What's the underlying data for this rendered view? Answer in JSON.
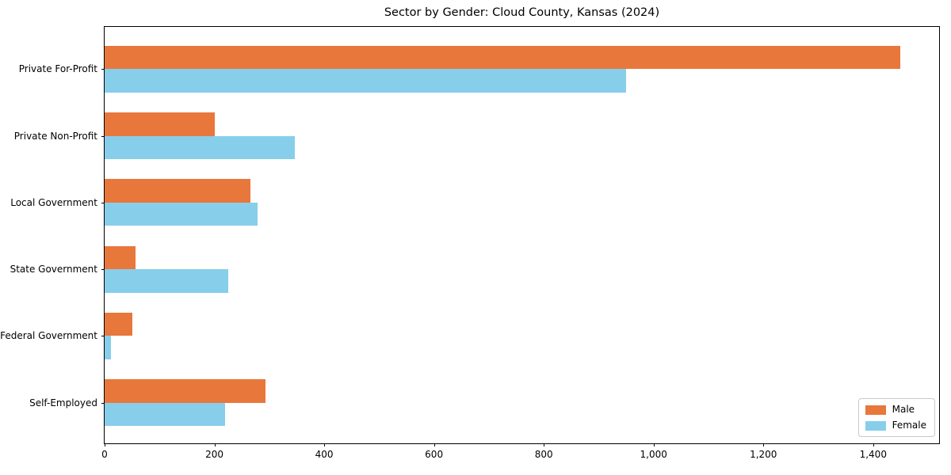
{
  "title": "Sector by Gender: Cloud County, Kansas (2024)",
  "colors": {
    "male": "#e8773c",
    "female": "#87ceeb",
    "axis": "#000000",
    "legend_border": "#c9c9c9"
  },
  "chart_data": {
    "type": "bar",
    "orientation": "horizontal",
    "title": "Sector by Gender: Cloud County, Kansas (2024)",
    "categories": [
      "Private For-Profit",
      "Private Non-Profit",
      "Local Government",
      "State Government",
      "Federal Government",
      "Self-Employed"
    ],
    "series": [
      {
        "name": "Male",
        "color": "#e8773c",
        "values": [
          1450,
          200,
          265,
          57,
          50,
          293
        ]
      },
      {
        "name": "Female",
        "color": "#87ceeb",
        "values": [
          950,
          347,
          278,
          225,
          12,
          219
        ]
      }
    ],
    "xlabel": "",
    "ylabel": "",
    "xlim": [
      0,
      1523
    ],
    "xticks": [
      0,
      200,
      400,
      600,
      800,
      1000,
      1200,
      1400
    ],
    "xtick_labels": [
      "0",
      "200",
      "400",
      "600",
      "800",
      "1,000",
      "1,200",
      "1,400"
    ],
    "grid": false,
    "legend_position": "lower right",
    "bar_order_note": "Male bar drawn above Female bar in each category group; categories listed top to bottom"
  }
}
